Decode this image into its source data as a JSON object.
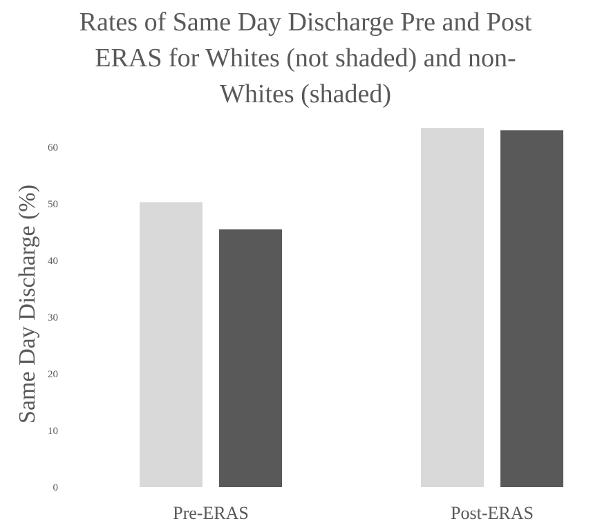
{
  "chart_data": {
    "type": "bar",
    "title_lines": [
      "Rates of Same Day Discharge Pre and Post",
      "ERAS for Whites (not shaded) and non-",
      "Whites (shaded)"
    ],
    "title": "Rates of Same Day Discharge Pre and Post ERAS for Whites (not shaded) and non-Whites (shaded)",
    "xlabel": "",
    "ylabel": "Same Day Discharge (%)",
    "categories": [
      "Pre-ERAS",
      "Post-ERAS"
    ],
    "series": [
      {
        "values": [
          50.3,
          63.4
        ],
        "color": "#d9d9d9"
      },
      {
        "values": [
          45.5,
          63.0
        ],
        "color": "#595959"
      }
    ],
    "ylim": [
      0,
      65
    ],
    "yticks": [
      0,
      10,
      20,
      30,
      40,
      50,
      60
    ],
    "grid": false,
    "legend": "none"
  }
}
